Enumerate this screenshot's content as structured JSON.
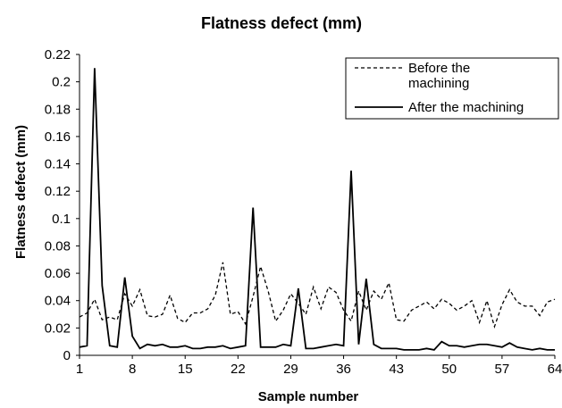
{
  "chart_data": {
    "type": "line",
    "title": "Flatness defect (mm)",
    "xlabel": "Sample number",
    "ylabel": "Flatness defect (mm)",
    "ylim": [
      0,
      0.22
    ],
    "yticks": [
      "0",
      "0.02",
      "0.04",
      "0.06",
      "0.08",
      "0.1",
      "0.12",
      "0.14",
      "0.16",
      "0.18",
      "0.2",
      "0.22"
    ],
    "xlim": [
      1,
      64
    ],
    "xticks": [
      "1",
      "8",
      "15",
      "22",
      "29",
      "36",
      "43",
      "50",
      "57",
      "64"
    ],
    "grid": false,
    "legend_position": "top-right",
    "x": [
      1,
      2,
      3,
      4,
      5,
      6,
      7,
      8,
      9,
      10,
      11,
      12,
      13,
      14,
      15,
      16,
      17,
      18,
      19,
      20,
      21,
      22,
      23,
      24,
      25,
      26,
      27,
      28,
      29,
      30,
      31,
      32,
      33,
      34,
      35,
      36,
      37,
      38,
      39,
      40,
      41,
      42,
      43,
      44,
      45,
      46,
      47,
      48,
      49,
      50,
      51,
      52,
      53,
      54,
      55,
      56,
      57,
      58,
      59,
      60,
      61,
      62,
      63,
      64
    ],
    "series": [
      {
        "name": "Before the machining",
        "style": "dashed",
        "color": "#000000",
        "values": [
          0.028,
          0.031,
          0.041,
          0.026,
          0.028,
          0.026,
          0.045,
          0.036,
          0.048,
          0.029,
          0.028,
          0.03,
          0.044,
          0.027,
          0.024,
          0.031,
          0.031,
          0.034,
          0.044,
          0.068,
          0.03,
          0.032,
          0.023,
          0.043,
          0.065,
          0.047,
          0.025,
          0.033,
          0.045,
          0.038,
          0.03,
          0.05,
          0.034,
          0.05,
          0.046,
          0.033,
          0.025,
          0.047,
          0.033,
          0.047,
          0.041,
          0.053,
          0.026,
          0.025,
          0.033,
          0.036,
          0.039,
          0.034,
          0.041,
          0.038,
          0.033,
          0.036,
          0.04,
          0.024,
          0.04,
          0.021,
          0.037,
          0.048,
          0.039,
          0.036,
          0.036,
          0.029,
          0.039,
          0.041
        ]
      },
      {
        "name": "After the machining",
        "style": "solid",
        "color": "#000000",
        "values": [
          0.006,
          0.007,
          0.21,
          0.051,
          0.007,
          0.006,
          0.057,
          0.014,
          0.005,
          0.008,
          0.007,
          0.008,
          0.006,
          0.006,
          0.007,
          0.005,
          0.005,
          0.006,
          0.006,
          0.007,
          0.005,
          0.006,
          0.007,
          0.108,
          0.006,
          0.006,
          0.006,
          0.008,
          0.007,
          0.049,
          0.005,
          0.005,
          0.006,
          0.007,
          0.008,
          0.007,
          0.135,
          0.008,
          0.056,
          0.008,
          0.005,
          0.005,
          0.005,
          0.004,
          0.004,
          0.004,
          0.005,
          0.004,
          0.01,
          0.007,
          0.007,
          0.006,
          0.007,
          0.008,
          0.008,
          0.007,
          0.006,
          0.009,
          0.006,
          0.005,
          0.004,
          0.005,
          0.004,
          0.004
        ]
      }
    ]
  }
}
